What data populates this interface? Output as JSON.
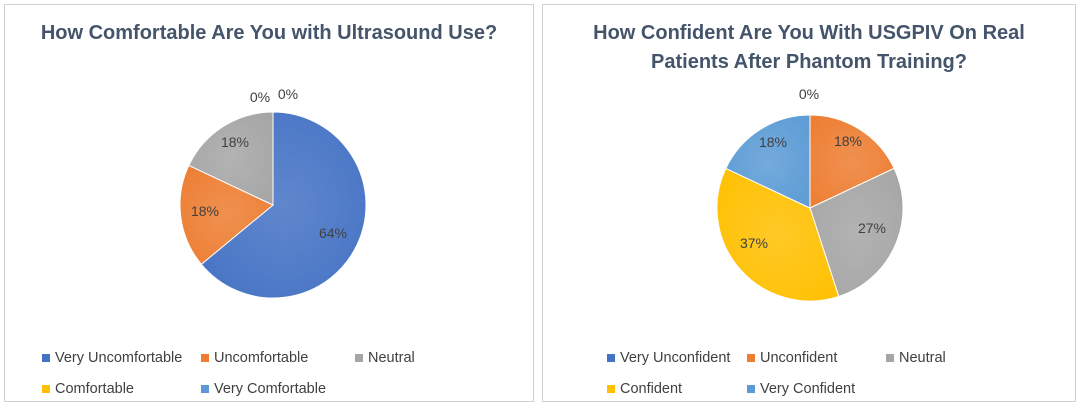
{
  "chart_data": [
    {
      "type": "pie",
      "title": "How Comfortable Are You with Ultrasound Use?",
      "categories": [
        "Very Uncomfortable",
        "Uncomfortable",
        "Neutral",
        "Comfortable",
        "Very Comfortable"
      ],
      "values": [
        64,
        18,
        18,
        0,
        0
      ],
      "labels": [
        "64%",
        "18%",
        "18%",
        "0%",
        "0%"
      ],
      "colors": [
        "#4472c4",
        "#ed7d31",
        "#a5a5a5",
        "#ffc000",
        "#5b9bd5"
      ],
      "legend": "bottom"
    },
    {
      "type": "pie",
      "title": "How Confident Are You With USGPIV On Real Patients After Phantom Training?",
      "categories": [
        "Very Unconfident",
        "Unconfident",
        "Neutral",
        "Confident",
        "Very Confident"
      ],
      "values": [
        0,
        18,
        27,
        37,
        18
      ],
      "labels": [
        "0%",
        "18%",
        "27%",
        "37%",
        "18%"
      ],
      "colors": [
        "#4472c4",
        "#ed7d31",
        "#a5a5a5",
        "#ffc000",
        "#5b9bd5"
      ],
      "legend": "bottom"
    }
  ]
}
